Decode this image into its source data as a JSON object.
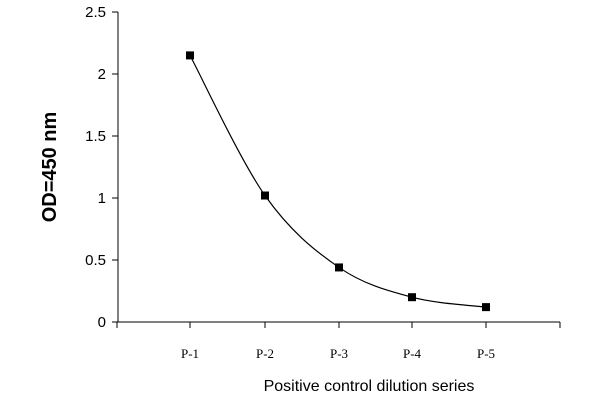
{
  "chart_data": {
    "type": "line",
    "categories": [
      "P-1",
      "P-2",
      "P-3",
      "P-4",
      "P-5"
    ],
    "values": [
      2.15,
      1.02,
      0.44,
      0.2,
      0.12
    ],
    "xlabel": "Positive control dilution series",
    "ylabel": "OD=450 nm",
    "ylim": [
      0,
      2.5
    ],
    "yticks": [
      "0",
      "0.5",
      "1",
      "1.5",
      "2",
      "2.5"
    ],
    "yticks_values": [
      0,
      0.5,
      1,
      1.5,
      2,
      2.5
    ],
    "grid": false,
    "legend": "none",
    "line_style": "smooth",
    "marker": "square",
    "colors": {
      "line": "#000000",
      "marker": "#000000",
      "axis": "#000000"
    }
  }
}
